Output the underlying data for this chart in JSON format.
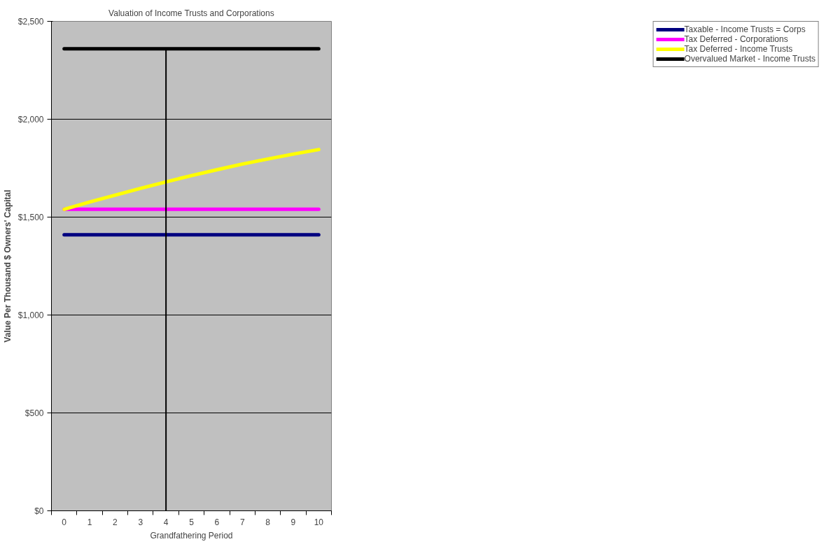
{
  "chart_data": {
    "type": "line",
    "title": "Valuation of Income Trusts and Corporations",
    "xlabel": "Grandfathering Period",
    "ylabel": "Value Per Thousand $ Owners' Capital",
    "categories": [
      "0",
      "1",
      "2",
      "3",
      "4",
      "5",
      "6",
      "7",
      "8",
      "9",
      "10"
    ],
    "series": [
      {
        "name": "Taxable - Income Trusts = Corps",
        "color": "#000080",
        "values": [
          1410,
          1410,
          1410,
          1410,
          1410,
          1410,
          1410,
          1410,
          1410,
          1410,
          1410
        ]
      },
      {
        "name": "Tax Deferred - Corporations",
        "color": "#ff00ff",
        "values": [
          1540,
          1540,
          1540,
          1540,
          1540,
          1540,
          1540,
          1540,
          1540,
          1540,
          1540
        ]
      },
      {
        "name": "Tax Deferred - Income Trusts",
        "color": "#ffff00",
        "values": [
          1540,
          1577,
          1612,
          1647,
          1680,
          1712,
          1742,
          1771,
          1797,
          1822,
          1845
        ]
      },
      {
        "name": "Overvalued Market - Income Trusts",
        "color": "#000000",
        "values": [
          2360,
          2360,
          2360,
          2360,
          2360,
          2360,
          2360,
          2360,
          2360,
          2360,
          2360
        ]
      },
      {
        "color": "#000000",
        "x": [
          "4",
          "4"
        ],
        "values": [
          0,
          2360
        ]
      }
    ],
    "ylim": [
      0,
      2500
    ],
    "yticks": [
      {
        "value": 0,
        "label": "$0"
      },
      {
        "value": 500,
        "label": "$500"
      },
      {
        "value": 1000,
        "label": "$1,000"
      },
      {
        "value": 1500,
        "label": "$1,500"
      },
      {
        "value": 2000,
        "label": "$2,000"
      },
      {
        "value": 2500,
        "label": "$2,500"
      }
    ],
    "grid": "y",
    "legend": "right"
  }
}
